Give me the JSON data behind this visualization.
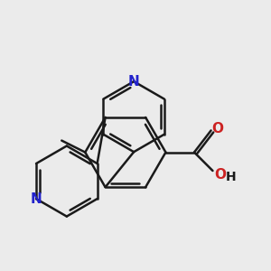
{
  "background_color": "#ebebeb",
  "bond_color": "#1a1a1a",
  "nitrogen_color": "#2222cc",
  "oxygen_color": "#cc2222",
  "lw": 1.8,
  "lw_aromatic": 1.6,
  "fig_w": 3.0,
  "fig_h": 3.0,
  "dpi": 100,
  "xlim": [
    -2.5,
    5.5
  ],
  "ylim": [
    -3.5,
    4.5
  ]
}
